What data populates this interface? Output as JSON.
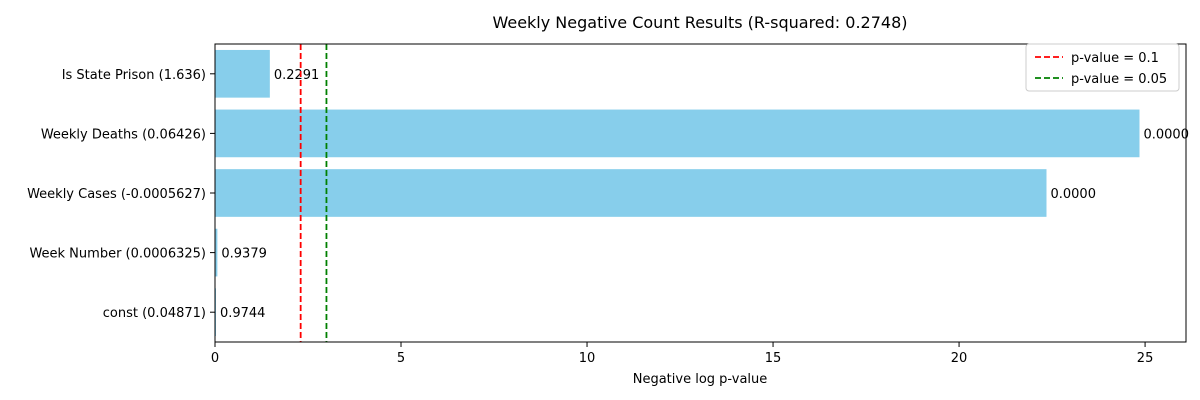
{
  "chart_data": {
    "type": "bar",
    "orientation": "horizontal",
    "title": "Weekly Negative Count Results (R-squared: 0.2748)",
    "xlabel": "Negative log p-value",
    "ylabel": "",
    "xlim": [
      0,
      26.1
    ],
    "x_ticks": [
      0,
      5,
      10,
      15,
      20,
      25
    ],
    "bar_color": "#87CEEB",
    "categories": [
      "Is State Prison (1.636)",
      "Weekly Deaths (0.06426)",
      "Weekly Cases (-0.0005627)",
      "Week Number (0.0006325)",
      "const (0.04871)"
    ],
    "values": [
      1.474,
      24.85,
      22.35,
      0.064,
      0.026
    ],
    "value_labels": [
      "0.2291",
      "0.0000",
      "0.0000",
      "0.9379",
      "0.9744"
    ],
    "reference_lines": [
      {
        "label": "p-value = 0.1",
        "value": 2.302585,
        "color": "#ff0000",
        "style": "dashed"
      },
      {
        "label": "p-value = 0.05",
        "value": 2.995732,
        "color": "#008000",
        "style": "dashed"
      }
    ],
    "legend_position": "top-right",
    "grid": false
  }
}
